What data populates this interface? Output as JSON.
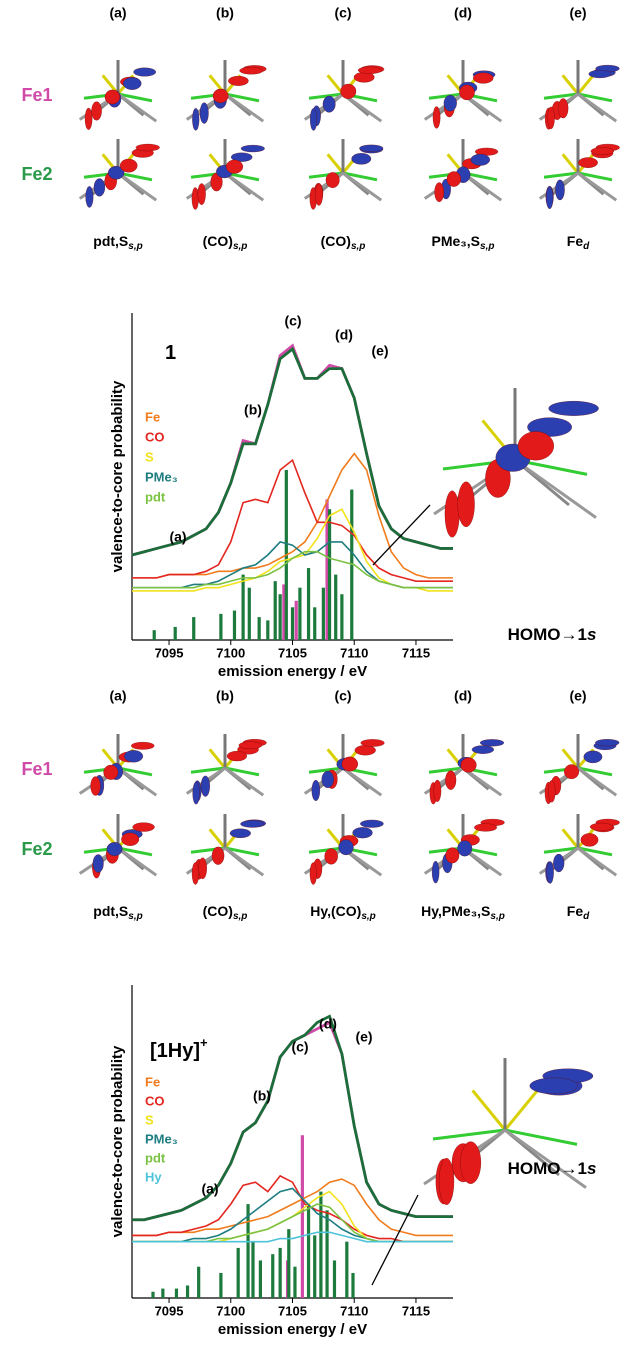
{
  "orbital_panels": [
    {
      "columns": [
        "(a)",
        "(b)",
        "(c)",
        "(d)",
        "(e)"
      ],
      "rows": [
        "Fe1",
        "Fe2"
      ],
      "labels": [
        {
          "text": "pdt,S",
          "sub": "s,p"
        },
        {
          "text": "(CO)",
          "sub": "s,p"
        },
        {
          "text": "(CO)",
          "sub": "s,p"
        },
        {
          "text": "PMe₃,S",
          "sub": "s,p"
        },
        {
          "text": "Fe",
          "sub": "d"
        }
      ]
    },
    {
      "columns": [
        "(a)",
        "(b)",
        "(c)",
        "(d)",
        "(e)"
      ],
      "rows": [
        "Fe1",
        "Fe2"
      ],
      "labels": [
        {
          "text": "pdt,S",
          "sub": "s,p"
        },
        {
          "text": "(CO)",
          "sub": "s,p"
        },
        {
          "text": "Hy,(CO)",
          "sub": "s,p"
        },
        {
          "text": "Hy,PMe₃,S",
          "sub": "s,p"
        },
        {
          "text": "Fe",
          "sub": "d"
        }
      ]
    }
  ],
  "chart_data": [
    {
      "type": "line",
      "title": "1",
      "xlabel": "emission energy / eV",
      "ylabel": "valence-to-core probability",
      "annotations": [
        "(a)",
        "(b)",
        "(c)",
        "(d)",
        "(e)"
      ],
      "inset_label": [
        "HOMO→1",
        "s"
      ],
      "xlim": [
        7092,
        7118
      ],
      "xticks": [
        7095,
        7100,
        7105,
        7110,
        7115
      ],
      "ylim": [
        0,
        1
      ],
      "x": [
        7092,
        7093,
        7094,
        7095,
        7096,
        7097,
        7098,
        7099,
        7100,
        7101,
        7102,
        7103,
        7104,
        7105,
        7106,
        7107,
        7108,
        7109,
        7110,
        7111,
        7112,
        7113,
        7114,
        7115,
        7116,
        7117,
        7118
      ],
      "totals": [
        {
          "color": "#d04aa7",
          "values": [
            0.26,
            0.27,
            0.28,
            0.29,
            0.3,
            0.32,
            0.34,
            0.39,
            0.48,
            0.61,
            0.6,
            0.72,
            0.87,
            0.9,
            0.8,
            0.8,
            0.84,
            0.83,
            0.74,
            0.57,
            0.41,
            0.34,
            0.31,
            0.3,
            0.29,
            0.28,
            0.28
          ]
        },
        {
          "color": "#1b6e3a",
          "values": [
            0.26,
            0.27,
            0.28,
            0.29,
            0.3,
            0.32,
            0.34,
            0.39,
            0.48,
            0.6,
            0.6,
            0.72,
            0.86,
            0.89,
            0.8,
            0.8,
            0.83,
            0.83,
            0.74,
            0.57,
            0.41,
            0.34,
            0.31,
            0.3,
            0.29,
            0.28,
            0.28
          ]
        }
      ],
      "series": [
        {
          "name": "Fe",
          "color": "#f07c1e",
          "values": [
            0.19,
            0.19,
            0.19,
            0.2,
            0.2,
            0.2,
            0.2,
            0.21,
            0.21,
            0.22,
            0.22,
            0.23,
            0.25,
            0.27,
            0.3,
            0.36,
            0.44,
            0.52,
            0.57,
            0.52,
            0.38,
            0.27,
            0.22,
            0.2,
            0.19,
            0.19,
            0.19
          ]
        },
        {
          "name": "CO",
          "color": "#e3261f",
          "values": [
            0.19,
            0.19,
            0.19,
            0.2,
            0.2,
            0.2,
            0.21,
            0.23,
            0.3,
            0.42,
            0.43,
            0.42,
            0.52,
            0.55,
            0.45,
            0.36,
            0.36,
            0.35,
            0.32,
            0.26,
            0.22,
            0.2,
            0.19,
            0.18,
            0.18,
            0.18,
            0.18
          ]
        },
        {
          "name": "S",
          "color": "#f2e21c",
          "values": [
            0.15,
            0.15,
            0.15,
            0.15,
            0.15,
            0.15,
            0.16,
            0.16,
            0.17,
            0.18,
            0.19,
            0.21,
            0.24,
            0.25,
            0.26,
            0.31,
            0.38,
            0.4,
            0.33,
            0.24,
            0.19,
            0.17,
            0.16,
            0.16,
            0.15,
            0.15,
            0.15
          ]
        },
        {
          "name": "PMe₃",
          "color": "#1e7d80",
          "values": [
            0.16,
            0.16,
            0.16,
            0.16,
            0.16,
            0.17,
            0.17,
            0.18,
            0.2,
            0.22,
            0.23,
            0.26,
            0.3,
            0.29,
            0.26,
            0.27,
            0.3,
            0.3,
            0.26,
            0.21,
            0.18,
            0.17,
            0.16,
            0.16,
            0.16,
            0.16,
            0.16
          ]
        },
        {
          "name": "pdt",
          "color": "#7cc242",
          "values": [
            0.16,
            0.16,
            0.16,
            0.16,
            0.16,
            0.16,
            0.17,
            0.17,
            0.18,
            0.19,
            0.19,
            0.2,
            0.22,
            0.25,
            0.27,
            0.27,
            0.25,
            0.24,
            0.23,
            0.2,
            0.18,
            0.17,
            0.16,
            0.16,
            0.16,
            0.16,
            0.16
          ]
        }
      ],
      "sticks": [
        {
          "color": "#d04aa7",
          "x": [
            7104.3,
            7105.3,
            7107.8
          ],
          "values": [
            0.17,
            0.12,
            0.43
          ]
        },
        {
          "color": "#1b7a3c",
          "x": [
            7093.8,
            7095.5,
            7097,
            7099.2,
            7100.3,
            7101,
            7101.5,
            7102.3,
            7103,
            7103.6,
            7104,
            7104.5,
            7105,
            7105.6,
            7106.3,
            7106.8,
            7107.5,
            7108,
            7108.5,
            7109,
            7109.8
          ],
          "values": [
            0.03,
            0.04,
            0.07,
            0.08,
            0.09,
            0.2,
            0.16,
            0.07,
            0.06,
            0.18,
            0.14,
            0.52,
            0.1,
            0.16,
            0.22,
            0.1,
            0.16,
            0.4,
            0.2,
            0.14,
            0.46
          ]
        }
      ]
    },
    {
      "type": "line",
      "title": "[1Hy]",
      "title_superscript": "+",
      "xlabel": "emission energy / eV",
      "ylabel": "valence-to-core probability",
      "annotations": [
        "(a)",
        "(b)",
        "(c)",
        "(d)",
        "(e)"
      ],
      "inset_label": [
        "HOMO→1",
        "s"
      ],
      "xlim": [
        7092,
        7118
      ],
      "xticks": [
        7095,
        7100,
        7105,
        7110,
        7115
      ],
      "ylim": [
        0,
        1
      ],
      "x": [
        7092,
        7093,
        7094,
        7095,
        7096,
        7097,
        7098,
        7099,
        7100,
        7101,
        7102,
        7103,
        7104,
        7105,
        7106,
        7107,
        7108,
        7109,
        7110,
        7111,
        7112,
        7113,
        7114,
        7115,
        7116,
        7117,
        7118
      ],
      "totals": [
        {
          "color": "#d04aa7",
          "values": [
            0.25,
            0.25,
            0.26,
            0.27,
            0.28,
            0.3,
            0.32,
            0.36,
            0.43,
            0.53,
            0.56,
            0.63,
            0.77,
            0.82,
            0.84,
            0.86,
            0.88,
            0.78,
            0.55,
            0.37,
            0.3,
            0.28,
            0.27,
            0.26,
            0.26,
            0.26,
            0.26
          ]
        },
        {
          "color": "#1b6e3a",
          "values": [
            0.25,
            0.25,
            0.26,
            0.27,
            0.28,
            0.3,
            0.32,
            0.36,
            0.43,
            0.53,
            0.56,
            0.63,
            0.77,
            0.82,
            0.84,
            0.88,
            0.9,
            0.78,
            0.55,
            0.37,
            0.3,
            0.28,
            0.27,
            0.26,
            0.26,
            0.26,
            0.26
          ]
        }
      ],
      "series": [
        {
          "name": "Fe",
          "color": "#f07c1e",
          "values": [
            0.2,
            0.2,
            0.2,
            0.21,
            0.21,
            0.21,
            0.22,
            0.22,
            0.23,
            0.24,
            0.25,
            0.26,
            0.28,
            0.3,
            0.32,
            0.34,
            0.37,
            0.38,
            0.36,
            0.3,
            0.25,
            0.22,
            0.21,
            0.2,
            0.2,
            0.2,
            0.2
          ]
        },
        {
          "name": "CO",
          "color": "#e3261f",
          "values": [
            0.2,
            0.2,
            0.2,
            0.21,
            0.21,
            0.22,
            0.23,
            0.25,
            0.3,
            0.36,
            0.37,
            0.34,
            0.39,
            0.37,
            0.3,
            0.28,
            0.27,
            0.25,
            0.22,
            0.2,
            0.19,
            0.19,
            0.18,
            0.18,
            0.18,
            0.18,
            0.18
          ]
        },
        {
          "name": "S",
          "color": "#f2e21c",
          "values": [
            0.18,
            0.18,
            0.18,
            0.18,
            0.18,
            0.18,
            0.18,
            0.18,
            0.19,
            0.2,
            0.21,
            0.22,
            0.24,
            0.26,
            0.29,
            0.32,
            0.34,
            0.3,
            0.23,
            0.19,
            0.18,
            0.18,
            0.18,
            0.18,
            0.18,
            0.18,
            0.18
          ]
        },
        {
          "name": "PMe₃",
          "color": "#1e7d80",
          "values": [
            0.18,
            0.18,
            0.18,
            0.18,
            0.18,
            0.19,
            0.19,
            0.2,
            0.22,
            0.25,
            0.28,
            0.31,
            0.34,
            0.35,
            0.31,
            0.27,
            0.25,
            0.22,
            0.2,
            0.19,
            0.18,
            0.18,
            0.18,
            0.18,
            0.18,
            0.18,
            0.18
          ]
        },
        {
          "name": "pdt",
          "color": "#7cc242",
          "values": [
            0.18,
            0.18,
            0.18,
            0.18,
            0.18,
            0.18,
            0.18,
            0.19,
            0.19,
            0.2,
            0.21,
            0.22,
            0.24,
            0.26,
            0.28,
            0.3,
            0.29,
            0.25,
            0.21,
            0.19,
            0.18,
            0.18,
            0.18,
            0.18,
            0.18,
            0.18,
            0.18
          ]
        },
        {
          "name": "Hy",
          "color": "#4cc3d9",
          "values": [
            0.18,
            0.18,
            0.18,
            0.18,
            0.18,
            0.18,
            0.18,
            0.18,
            0.18,
            0.18,
            0.18,
            0.18,
            0.19,
            0.19,
            0.2,
            0.21,
            0.21,
            0.2,
            0.19,
            0.18,
            0.18,
            0.18,
            0.18,
            0.18,
            0.18,
            0.18,
            0.18
          ]
        }
      ],
      "sticks": [
        {
          "color": "#d04aa7",
          "x": [
            7105.8,
            7104.6
          ],
          "values": [
            0.52,
            0.12
          ]
        },
        {
          "color": "#1b7a3c",
          "x": [
            7093.7,
            7094.5,
            7095.6,
            7096.5,
            7097.4,
            7099.2,
            7100.6,
            7101.4,
            7101.8,
            7102.4,
            7103.4,
            7104,
            7104.7,
            7105.2,
            7106.3,
            7106.8,
            7107.3,
            7107.8,
            7108.4,
            7109.4,
            7109.9
          ],
          "values": [
            0.02,
            0.03,
            0.03,
            0.04,
            0.1,
            0.08,
            0.16,
            0.3,
            0.18,
            0.12,
            0.14,
            0.16,
            0.22,
            0.1,
            0.3,
            0.2,
            0.34,
            0.28,
            0.12,
            0.18,
            0.08
          ]
        }
      ]
    }
  ]
}
